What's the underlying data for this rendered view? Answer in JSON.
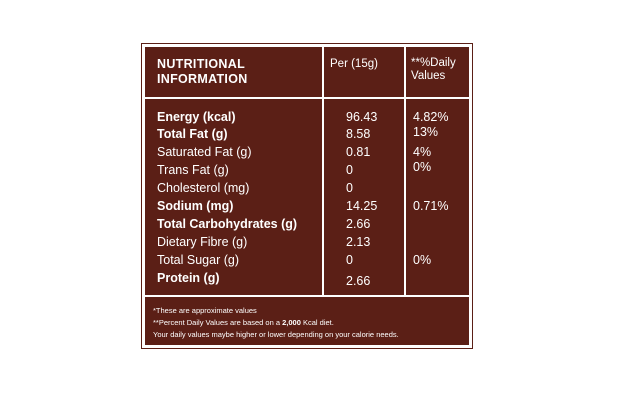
{
  "header": {
    "title_line1": "NUTRITIONAL",
    "title_line2": "INFORMATION",
    "per_label": "Per (15g)",
    "dv_line1": "**%Daily",
    "dv_line2": "Values"
  },
  "rows": [
    {
      "name": "Energy (kcal)",
      "per": "96.43",
      "dv": "4.82%",
      "bold": true
    },
    {
      "name": "Total Fat (g)",
      "per": "8.58",
      "dv": "13%",
      "bold": true
    },
    {
      "name": "Saturated Fat (g)",
      "per": "0.81",
      "dv": "4%",
      "bold": false
    },
    {
      "name": "Trans Fat (g)",
      "per": "0",
      "dv": "0%",
      "bold": false
    },
    {
      "name": "Cholesterol (mg)",
      "per": "0",
      "dv": "",
      "bold": false
    },
    {
      "name": "Sodium (mg)",
      "per": "14.25",
      "dv": "0.71%",
      "bold": true
    },
    {
      "name": "Total Carbohydrates (g)",
      "per": "2.66",
      "dv": "",
      "bold": true
    },
    {
      "name": "Dietary Fibre (g)",
      "per": "2.13",
      "dv": "",
      "bold": false
    },
    {
      "name": "Total Sugar (g)",
      "per": "0",
      "dv": "0%",
      "bold": false
    },
    {
      "name": "Protein (g)",
      "per": "2.66",
      "dv": "",
      "bold": true
    }
  ],
  "footnotes": {
    "line1": "*These are approximate values",
    "line2_prefix": "**Percent Daily Values are based on a ",
    "line2_bold": "2,000",
    "line2_suffix": " Kcal diet.",
    "line3": "Your daily values maybe higher or lower depending on your calorie needs."
  },
  "colors": {
    "panel_bg": "#5b1f16",
    "text": "#ffffff"
  }
}
